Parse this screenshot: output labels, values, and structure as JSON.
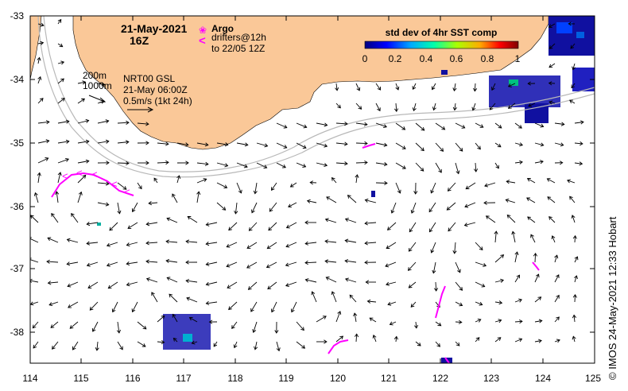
{
  "header": {
    "date": "21-May-2021",
    "hour": "16Z"
  },
  "legend": {
    "argo_label": "Argo",
    "drifters_label": "drifters@12h",
    "drifters_period": "to 22/05 12Z",
    "argo_symbol": "❀",
    "drifter_symbol": "<"
  },
  "annotations": {
    "isobath_200": "200m",
    "isobath_1000": "1000m",
    "product": "NRT00 GSL",
    "product_time": "21-May 06:00Z",
    "scale_label": "0.5m/s (1kt 24h)"
  },
  "colorbar": {
    "title": "std dev of 4hr SST comp",
    "ticks": [
      "0",
      "0.2",
      "0.4",
      "0.6",
      "0.8",
      "1"
    ],
    "stops": [
      "#000080",
      "#0000ff",
      "#00aaff",
      "#00ffaa",
      "#aaff00",
      "#ffaa00",
      "#ff0000",
      "#800000"
    ]
  },
  "map": {
    "lon_ticks": [
      "114",
      "115",
      "116",
      "117",
      "118",
      "119",
      "120",
      "121",
      "122",
      "123",
      "124",
      "125"
    ],
    "lat_ticks": [
      "-33",
      "-34",
      "-35",
      "-36",
      "-37",
      "-38"
    ],
    "land_color": "#fac898",
    "argo_color": "#ff00ff",
    "drifter_color": "#ff00ff"
  },
  "credit": "©  IMOS 24-May-2021 12:33 Hobart"
}
